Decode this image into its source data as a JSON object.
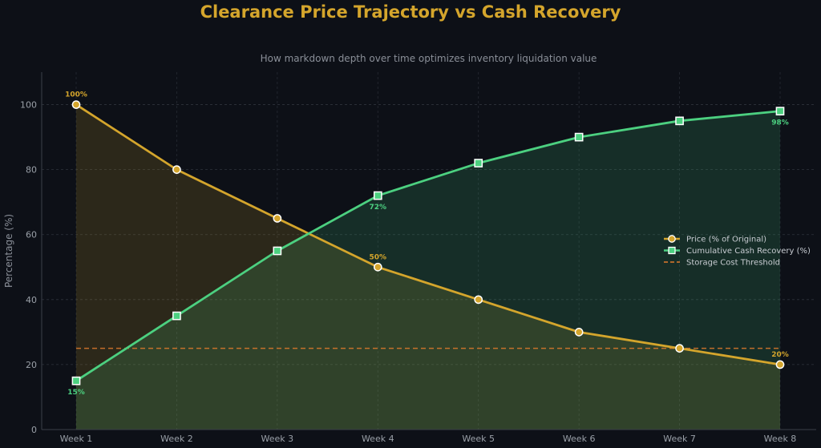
{
  "chart_data": {
    "type": "line",
    "title": "Clearance Price Trajectory vs Cash Recovery",
    "subtitle": "How markdown depth over time optimizes inventory liquidation value",
    "ylabel": "Percentage (%)",
    "xlabel": "",
    "categories": [
      "Week 1",
      "Week 2",
      "Week 3",
      "Week 4",
      "Week 5",
      "Week 6",
      "Week 7",
      "Week 8"
    ],
    "ylim": [
      0,
      110
    ],
    "yticks": [
      0,
      20,
      40,
      60,
      80,
      100
    ],
    "grid": true,
    "legend_position": "center-right",
    "series": [
      {
        "name": "Price (% of Original)",
        "values": [
          100,
          80,
          65,
          50,
          40,
          30,
          25,
          20
        ],
        "color": "#d4a52c",
        "marker": "circle",
        "fill": true,
        "data_labels": [
          {
            "index": 0,
            "text": "100%"
          },
          {
            "index": 3,
            "text": "50%"
          },
          {
            "index": 7,
            "text": "20%"
          }
        ]
      },
      {
        "name": "Cumulative Cash Recovery (%)",
        "values": [
          15,
          35,
          55,
          72,
          82,
          90,
          95,
          98
        ],
        "color": "#4cd080",
        "marker": "square",
        "fill": true,
        "data_labels": [
          {
            "index": 0,
            "text": "15%"
          },
          {
            "index": 3,
            "text": "72%"
          },
          {
            "index": 7,
            "text": "98%"
          }
        ]
      }
    ],
    "reference_lines": [
      {
        "name": "Storage Cost Threshold",
        "y": 25,
        "color": "#e07a2c",
        "style": "dashed"
      }
    ]
  }
}
